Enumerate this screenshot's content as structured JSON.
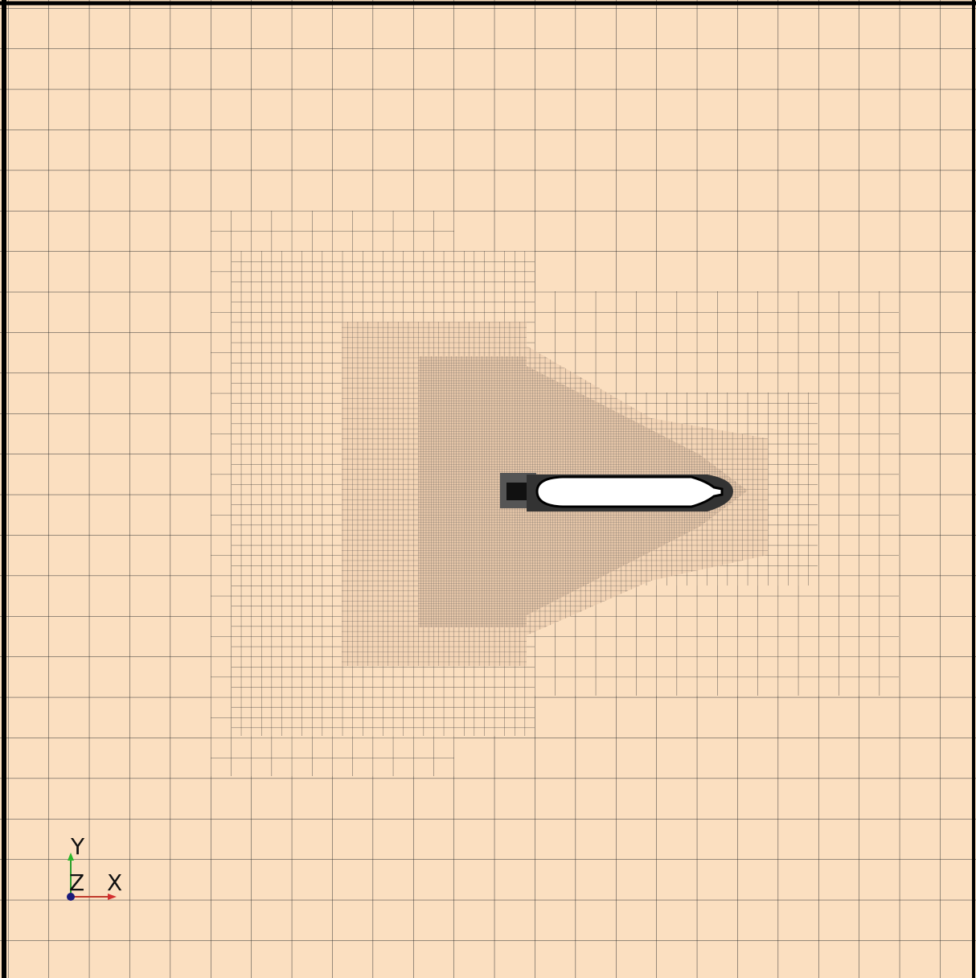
{
  "axes": {
    "y": "Y",
    "z": "Z",
    "x": "X"
  }
}
